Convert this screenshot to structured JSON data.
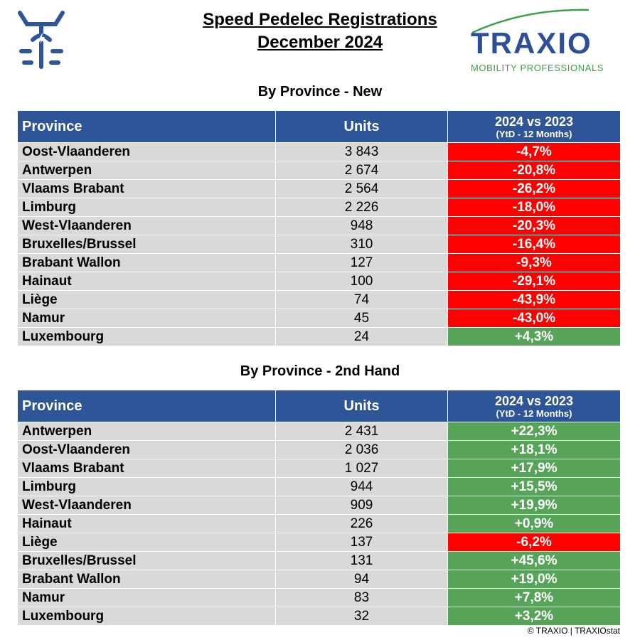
{
  "header": {
    "title_line1": "Speed Pedelec Registrations",
    "title_line2": "December 2024",
    "brand_name": "TRAXIO",
    "brand_tagline": "MOBILITY PROFESSIONALS",
    "logo_icon": "speed-pedelec-rider-icon"
  },
  "colors": {
    "header_bg": "#2e5597",
    "row_bg": "#d9d9d9",
    "negative": "#ff0000",
    "positive": "#57a35a",
    "brand_blue": "#2d4f98",
    "brand_green": "#3aa04a"
  },
  "tables": [
    {
      "title": "By Province - New",
      "columns": {
        "province": "Province",
        "units": "Units",
        "change": "2024 vs 2023",
        "change_sub": "(YtD - 12 Months)"
      },
      "rows": [
        {
          "province": "Oost-Vlaanderen",
          "units": "3 843",
          "change": "-4,7%",
          "trend": "neg"
        },
        {
          "province": "Antwerpen",
          "units": "2 674",
          "change": "-20,8%",
          "trend": "neg"
        },
        {
          "province": "Vlaams Brabant",
          "units": "2 564",
          "change": "-26,2%",
          "trend": "neg"
        },
        {
          "province": "Limburg",
          "units": "2 226",
          "change": "-18,0%",
          "trend": "neg"
        },
        {
          "province": "West-Vlaanderen",
          "units": "948",
          "change": "-20,3%",
          "trend": "neg"
        },
        {
          "province": "Bruxelles/Brussel",
          "units": "310",
          "change": "-16,4%",
          "trend": "neg"
        },
        {
          "province": "Brabant Wallon",
          "units": "127",
          "change": "-9,3%",
          "trend": "neg"
        },
        {
          "province": "Hainaut",
          "units": "100",
          "change": "-29,1%",
          "trend": "neg"
        },
        {
          "province": "Liège",
          "units": "74",
          "change": "-43,9%",
          "trend": "neg"
        },
        {
          "province": "Namur",
          "units": "45",
          "change": "-43,0%",
          "trend": "neg"
        },
        {
          "province": "Luxembourg",
          "units": "24",
          "change": "+4,3%",
          "trend": "pos"
        }
      ]
    },
    {
      "title": "By Province - 2nd Hand",
      "columns": {
        "province": "Province",
        "units": "Units",
        "change": "2024 vs 2023",
        "change_sub": "(YtD - 12 Months)"
      },
      "rows": [
        {
          "province": "Antwerpen",
          "units": "2 431",
          "change": "+22,3%",
          "trend": "pos"
        },
        {
          "province": "Oost-Vlaanderen",
          "units": "2 036",
          "change": "+18,1%",
          "trend": "pos"
        },
        {
          "province": "Vlaams Brabant",
          "units": "1 027",
          "change": "+17,9%",
          "trend": "pos"
        },
        {
          "province": "Limburg",
          "units": "944",
          "change": "+15,5%",
          "trend": "pos"
        },
        {
          "province": "West-Vlaanderen",
          "units": "909",
          "change": "+19,9%",
          "trend": "pos"
        },
        {
          "province": "Hainaut",
          "units": "226",
          "change": "+0,9%",
          "trend": "pos"
        },
        {
          "province": "Liège",
          "units": "137",
          "change": "-6,2%",
          "trend": "neg"
        },
        {
          "province": "Bruxelles/Brussel",
          "units": "131",
          "change": "+45,6%",
          "trend": "pos"
        },
        {
          "province": "Brabant Wallon",
          "units": "94",
          "change": "+19,0%",
          "trend": "pos"
        },
        {
          "province": "Namur",
          "units": "83",
          "change": "+7,8%",
          "trend": "pos"
        },
        {
          "province": "Luxembourg",
          "units": "32",
          "change": "+3,2%",
          "trend": "pos"
        }
      ]
    }
  ],
  "footer": {
    "copyright": "© TRAXIO | TRAXIOstat"
  }
}
